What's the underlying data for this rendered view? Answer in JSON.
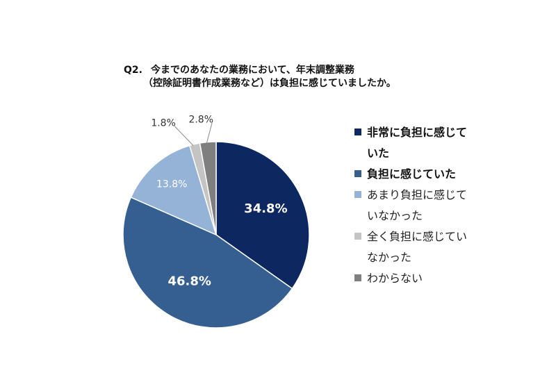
{
  "title": {
    "q": "Q2.",
    "line1": "今までのあなたの業務において、年末調整業務",
    "line2": "（控除証明書作成業務など）は負担に感じていましたか。"
  },
  "chart_data": {
    "type": "pie",
    "categories": [
      "非常に負担に感じていた",
      "負担に感じていた",
      "あまり負担に感じていなかった",
      "全く負担に感じていなかった",
      "わからない"
    ],
    "values": [
      34.8,
      46.8,
      13.8,
      1.8,
      2.8
    ],
    "labels": [
      "34.8%",
      "46.8%",
      "13.8%",
      "1.8%",
      "2.8%"
    ],
    "colors": [
      "#0d2760",
      "#365f91",
      "#95b3d7",
      "#c4c4c4",
      "#7f7f7f"
    ],
    "label_colors": [
      "#ffffff",
      "#ffffff",
      "#ffffff",
      "#333333",
      "#333333"
    ],
    "legend_placement": "right",
    "start_angle_deg": 0,
    "direction": "clockwise"
  },
  "legend": [
    {
      "label": "非常に負担に感じていた",
      "line1": "非常に負担に感じて",
      "line2": "いた",
      "bold": true
    },
    {
      "label": "負担に感じていた",
      "line1": "負担に感じていた",
      "line2": "",
      "bold": true
    },
    {
      "label": "あまり負担に感じていなかった",
      "line1": "あまり負担に感じて",
      "line2": "いなかった",
      "bold": false
    },
    {
      "label": "全く負担に感じていなかった",
      "line1": "全く負担に感じてい",
      "line2": "なかった",
      "bold": false
    },
    {
      "label": "わからない",
      "line1": "わからない",
      "line2": "",
      "bold": false
    }
  ]
}
